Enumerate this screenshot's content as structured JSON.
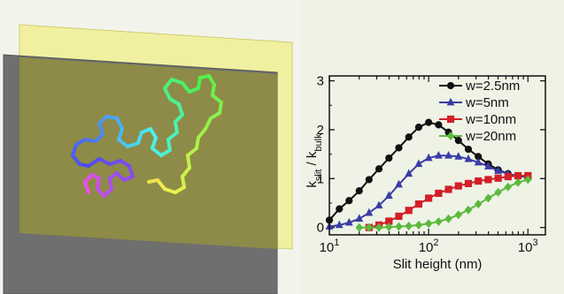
{
  "chart_data": {
    "type": "line",
    "xscale": "log",
    "xlim": [
      10,
      1500
    ],
    "ylim": [
      -0.15,
      3.1
    ],
    "xlabel": "Slit height (nm)",
    "ylabel": {
      "base1": "k",
      "sub1": "slit",
      "sep": " / ",
      "base2": "k",
      "sub2": "bulk"
    },
    "xticks": [
      {
        "value": 10,
        "base": "10",
        "exp": "1"
      },
      {
        "value": 100,
        "base": "10",
        "exp": "2"
      },
      {
        "value": 1000,
        "base": "10",
        "exp": "3"
      }
    ],
    "yticks": [
      {
        "value": 0,
        "label": "0"
      },
      {
        "value": 1,
        "label": "1"
      },
      {
        "value": 2,
        "label": "2"
      },
      {
        "value": 3,
        "label": "3"
      }
    ],
    "legend_position": "top-right",
    "series": [
      {
        "name": "w=2.5nm",
        "color": "#111111",
        "marker": "circle",
        "x": [
          10,
          12.6,
          15.8,
          20,
          25.1,
          31.6,
          39.8,
          50.1,
          63.1,
          79.4,
          100,
          125.9,
          158.5,
          199.5,
          251.2,
          316.2,
          398.1,
          501.2,
          631,
          794.3,
          1000
        ],
        "y": [
          0.15,
          0.38,
          0.55,
          0.75,
          0.98,
          1.2,
          1.42,
          1.63,
          1.85,
          2.05,
          2.15,
          2.1,
          1.95,
          1.78,
          1.6,
          1.45,
          1.3,
          1.18,
          1.1,
          1.05,
          1.03
        ]
      },
      {
        "name": "w=5nm",
        "color": "#3b3ca6",
        "marker": "triangle",
        "x": [
          10,
          12.6,
          15.8,
          20,
          25.1,
          31.6,
          39.8,
          50.1,
          63.1,
          79.4,
          100,
          125.9,
          158.5,
          199.5,
          251.2,
          316.2,
          398.1,
          501.2,
          631,
          794.3,
          1000
        ],
        "y": [
          0.02,
          0.05,
          0.1,
          0.18,
          0.3,
          0.45,
          0.65,
          0.88,
          1.1,
          1.3,
          1.42,
          1.47,
          1.47,
          1.45,
          1.4,
          1.33,
          1.25,
          1.16,
          1.1,
          1.05,
          1.03
        ]
      },
      {
        "name": "w=10nm",
        "color": "#d31f28",
        "marker": "square",
        "x": [
          25.1,
          31.6,
          39.8,
          50.1,
          63.1,
          79.4,
          100,
          125.9,
          158.5,
          199.5,
          251.2,
          316.2,
          398.1,
          501.2,
          631,
          794.3,
          1000
        ],
        "y": [
          0.0,
          0.05,
          0.13,
          0.23,
          0.35,
          0.48,
          0.6,
          0.7,
          0.78,
          0.85,
          0.9,
          0.95,
          0.98,
          1.01,
          1.04,
          1.06,
          1.06
        ]
      },
      {
        "name": "w=20nm",
        "color": "#5cb93d",
        "marker": "diamond",
        "x": [
          20,
          25.1,
          31.6,
          39.8,
          50.1,
          63.1,
          79.4,
          100,
          125.9,
          158.5,
          199.5,
          251.2,
          316.2,
          398.1,
          501.2,
          631,
          794.3,
          1000
        ],
        "y": [
          0.0,
          0.0,
          0.0,
          0.01,
          0.02,
          0.03,
          0.05,
          0.08,
          0.12,
          0.18,
          0.26,
          0.36,
          0.48,
          0.6,
          0.72,
          0.83,
          0.92,
          0.98
        ]
      }
    ]
  }
}
